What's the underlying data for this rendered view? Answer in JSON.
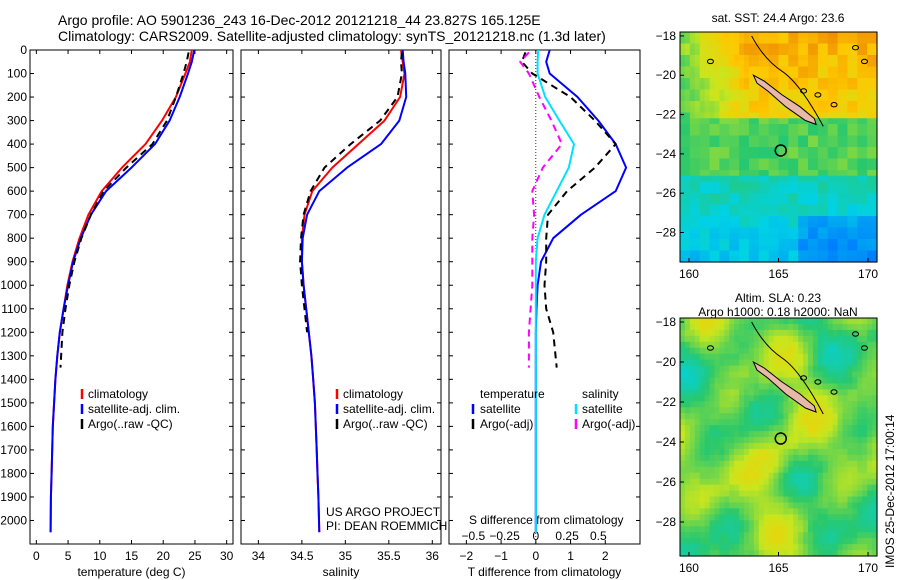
{
  "header": {
    "line1": "Argo profile: AO 5901236_243 16-Dec-2012 20121218_44 23.827S 165.125E",
    "line2": "Climatology: CARS2009. Satellite-adjusted climatology: synTS_20121218.nc (1.3d later)"
  },
  "colors": {
    "climatology": "#ff0000",
    "satellite": "#0000ff",
    "argo": "#000000",
    "satellite_salinity": "#00e0ff",
    "argo_salinity": "#ff00ff"
  },
  "chart_data": [
    {
      "id": "temperature",
      "type": "line",
      "xlabel": "temperature (deg C)",
      "ylabel": "",
      "xlim": [
        -1,
        31
      ],
      "ylim": [
        2100,
        0
      ],
      "xticks": [
        0,
        5,
        10,
        15,
        20,
        25,
        30
      ],
      "yticks": [
        0,
        100,
        200,
        300,
        400,
        500,
        600,
        700,
        800,
        900,
        1000,
        1100,
        1200,
        1300,
        1400,
        1500,
        1600,
        1700,
        1800,
        1900,
        2000
      ],
      "legend": [
        "climatology",
        "satellite-adj. clim.",
        "Argo(..raw -QC)"
      ],
      "legend_position": "bottom-center",
      "series": [
        {
          "name": "climatology",
          "color": "#ff0000",
          "dash": false,
          "x": [
            24.5,
            24.2,
            23.5,
            22.0,
            19.8,
            17.2,
            13.5,
            10.3,
            8.2,
            6.8,
            5.7,
            4.9,
            4.3,
            3.7,
            3.3,
            3.0,
            2.8,
            2.6,
            2.5,
            2.4,
            2.3,
            2.25
          ],
          "y": [
            0,
            50,
            100,
            200,
            300,
            400,
            500,
            600,
            700,
            800,
            900,
            1000,
            1100,
            1200,
            1300,
            1400,
            1500,
            1600,
            1700,
            1800,
            1900,
            2050
          ]
        },
        {
          "name": "satellite-adj. clim.",
          "color": "#0000ff",
          "dash": false,
          "x": [
            24.9,
            24.5,
            23.9,
            22.6,
            21.0,
            18.7,
            15.0,
            11.0,
            8.6,
            7.0,
            5.8,
            5.0,
            4.3,
            3.7,
            3.3,
            3.0,
            2.8,
            2.6,
            2.5,
            2.4,
            2.3,
            2.25
          ],
          "y": [
            0,
            50,
            100,
            200,
            300,
            400,
            500,
            600,
            700,
            800,
            900,
            1000,
            1100,
            1200,
            1300,
            1400,
            1500,
            1600,
            1700,
            1800,
            1900,
            2050
          ]
        },
        {
          "name": "Argo(..raw -QC)",
          "color": "#000000",
          "dash": true,
          "x": [
            24.0,
            23.7,
            23.2,
            22.0,
            20.6,
            18.3,
            14.2,
            10.6,
            8.6,
            7.1,
            6.0,
            5.2,
            4.6,
            4.1,
            3.8
          ],
          "y": [
            10,
            50,
            100,
            200,
            300,
            400,
            500,
            600,
            700,
            800,
            900,
            1000,
            1100,
            1200,
            1350
          ]
        }
      ]
    },
    {
      "id": "salinity",
      "type": "line",
      "xlabel": "salinity",
      "ylabel": "",
      "xlim": [
        33.8,
        36.1
      ],
      "ylim": [
        2100,
        0
      ],
      "xticks": [
        34,
        34.5,
        35,
        35.5,
        36
      ],
      "legend": [
        "climatology",
        "satellite-adj. clim.",
        "Argo(..raw -QC)"
      ],
      "legend_position": "bottom-center",
      "annotation": [
        "US ARGO PROJECT",
        "PI: DEAN ROEMMICH"
      ],
      "series": [
        {
          "name": "climatology",
          "color": "#ff0000",
          "dash": false,
          "x": [
            35.64,
            35.66,
            35.68,
            35.63,
            35.45,
            35.15,
            34.85,
            34.62,
            34.53,
            34.5,
            34.5,
            34.52,
            34.55,
            34.58,
            34.61,
            34.63,
            34.65,
            34.66,
            34.67,
            34.68,
            34.69,
            34.7
          ],
          "y": [
            0,
            50,
            100,
            200,
            300,
            400,
            500,
            600,
            700,
            800,
            900,
            1000,
            1100,
            1200,
            1300,
            1400,
            1500,
            1600,
            1700,
            1800,
            1900,
            2050
          ]
        },
        {
          "name": "satellite-adj. clim.",
          "color": "#0000ff",
          "dash": false,
          "x": [
            35.66,
            35.67,
            35.69,
            35.7,
            35.62,
            35.41,
            35.02,
            34.7,
            34.56,
            34.51,
            34.5,
            34.52,
            34.55,
            34.58,
            34.61,
            34.63,
            34.65,
            34.66,
            34.67,
            34.68,
            34.69,
            34.7
          ],
          "y": [
            0,
            50,
            100,
            200,
            300,
            400,
            500,
            600,
            700,
            800,
            900,
            1000,
            1100,
            1200,
            1300,
            1400,
            1500,
            1600,
            1700,
            1800,
            1900,
            2050
          ]
        },
        {
          "name": "Argo(..raw -QC)",
          "color": "#000000",
          "dash": true,
          "x": [
            35.65,
            35.64,
            35.65,
            35.6,
            35.4,
            35.06,
            34.76,
            34.6,
            34.52,
            34.49,
            34.48,
            34.5,
            34.53,
            34.56
          ],
          "y": [
            10,
            50,
            100,
            200,
            300,
            400,
            500,
            600,
            700,
            800,
            900,
            1000,
            1100,
            1200
          ]
        }
      ]
    },
    {
      "id": "difference",
      "type": "line",
      "xlabel": "T difference from climatology",
      "xlabel_top": "S difference from climatology",
      "xlim": [
        -2.5,
        3.0
      ],
      "ylim": [
        2100,
        0
      ],
      "xticks": [
        -2,
        -1,
        0,
        1,
        2
      ],
      "xtick_labels": [
        "−2",
        "−1",
        "0",
        "1",
        "2"
      ],
      "s_ticks": [
        -0.5,
        -0.25,
        0,
        0.25,
        0.5
      ],
      "s_tick_labels": [
        "−0.5",
        "−0.25",
        "0",
        "0.25",
        "0.5"
      ],
      "legend_temperature": [
        "temperature",
        "satellite",
        "Argo(-adj)"
      ],
      "legend_salinity": [
        "salinity",
        "satellite",
        "Argo(-adj)"
      ],
      "series": [
        {
          "name": "satellite",
          "group": "temperature",
          "color": "#0000ff",
          "dash": false,
          "x": [
            0.4,
            0.3,
            0.4,
            1.2,
            1.8,
            2.3,
            2.6,
            2.3,
            1.3,
            0.5,
            0.15,
            0.05,
            0.02,
            0.0,
            0.0,
            0.0,
            0.0,
            0.0,
            0.0,
            0.0,
            0.0,
            0.0
          ],
          "y": [
            0,
            50,
            100,
            200,
            300,
            400,
            500,
            600,
            700,
            800,
            900,
            1000,
            1100,
            1200,
            1300,
            1400,
            1500,
            1600,
            1700,
            1800,
            1900,
            2050
          ]
        },
        {
          "name": "Argo(-adj)",
          "group": "temperature",
          "color": "#000000",
          "dash": true,
          "x": [
            -0.3,
            -0.4,
            -0.1,
            1.0,
            1.7,
            2.3,
            1.7,
            0.9,
            0.35,
            0.3,
            0.3,
            0.25,
            0.3,
            0.5,
            0.6
          ],
          "y": [
            10,
            50,
            100,
            200,
            300,
            400,
            500,
            600,
            700,
            800,
            900,
            1000,
            1100,
            1200,
            1350
          ]
        },
        {
          "name": "satellite",
          "group": "salinity",
          "color": "#00e0ff",
          "dash": false,
          "x": [
            0.07,
            0.05,
            0.05,
            0.27,
            0.68,
            1.1,
            0.95,
            0.6,
            0.25,
            0.05,
            0.0,
            0.0,
            0.0,
            0.0,
            0.0,
            0.0,
            0.0,
            0.0,
            0.0,
            0.0,
            0.0,
            0.0
          ],
          "y": [
            0,
            50,
            100,
            200,
            300,
            400,
            500,
            600,
            700,
            800,
            900,
            1000,
            1100,
            1200,
            1300,
            1400,
            1500,
            1600,
            1700,
            1800,
            1900,
            2050
          ]
        },
        {
          "name": "Argo(-adj)",
          "group": "salinity",
          "color": "#ff00ff",
          "dash": true,
          "x": [
            -0.2,
            -0.45,
            -0.2,
            0.1,
            0.45,
            0.75,
            0.2,
            -0.1,
            -0.05,
            -0.1,
            -0.1,
            -0.1,
            -0.15,
            -0.2,
            -0.2
          ],
          "y": [
            10,
            50,
            100,
            200,
            300,
            400,
            500,
            600,
            700,
            800,
            900,
            1000,
            1100,
            1200,
            1350
          ]
        }
      ]
    },
    {
      "id": "sst_map",
      "type": "heatmap",
      "title": "sat. SST: 24.4 Argo: 23.6",
      "xlim": [
        159.5,
        170.5
      ],
      "ylim": [
        -29.5,
        -17.8
      ],
      "xticks": [
        160,
        165,
        170
      ],
      "yticks": [
        -28,
        -26,
        -24,
        -22,
        -20,
        -18
      ],
      "marker": {
        "lon": 165.125,
        "lat": -23.827
      }
    },
    {
      "id": "sla_map",
      "type": "heatmap",
      "title": "Altim. SLA: 0.23",
      "subtitle": "Argo h1000: 0.18 h2000: NaN",
      "xlim": [
        159.5,
        170.5
      ],
      "ylim": [
        -29.7,
        -17.8
      ],
      "xticks": [
        160,
        165,
        170
      ],
      "yticks": [
        -28,
        -26,
        -24,
        -22,
        -20,
        -18
      ],
      "marker": {
        "lon": 165.125,
        "lat": -23.827
      }
    }
  ],
  "side_label": "IMOS 25-Dec-2012 17:00:14"
}
